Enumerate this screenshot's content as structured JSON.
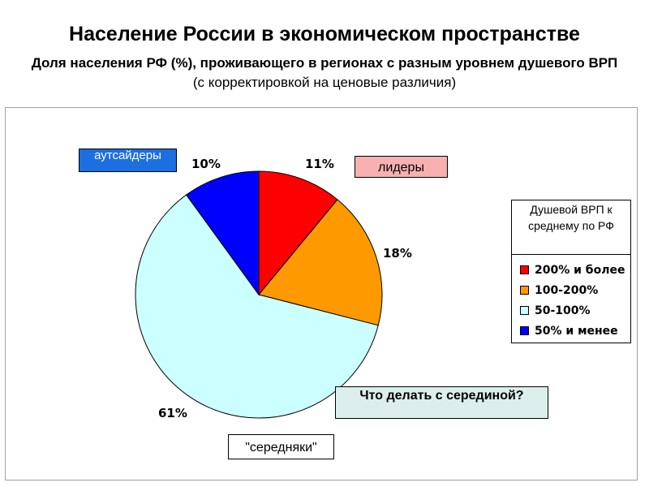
{
  "header": {
    "title": "Население России в экономическом пространстве",
    "subtitle_bold": "Доля населения РФ (%), проживающего в регионах с разным уровнем душевого ВРП",
    "subtitle_normal": " (с корректировкой на ценовые различия)"
  },
  "callouts": {
    "outsiders": "аутсайдеры",
    "leaders": "лидеры",
    "question": "Что делать с серединой?",
    "middle": "\"середняки\""
  },
  "legend": {
    "title": "Душевой ВРП к среднему по РФ"
  },
  "chart_data": {
    "type": "pie",
    "title": "",
    "categories": [
      "200% и более",
      "100-200%",
      "50-100%",
      "50% и менее"
    ],
    "values": [
      11,
      18,
      61,
      10
    ],
    "labels": [
      "11%",
      "18%",
      "61%",
      "10%"
    ],
    "colors": [
      "#ff0000",
      "#ff9900",
      "#ccffff",
      "#0000ff"
    ],
    "legend_position": "right"
  }
}
